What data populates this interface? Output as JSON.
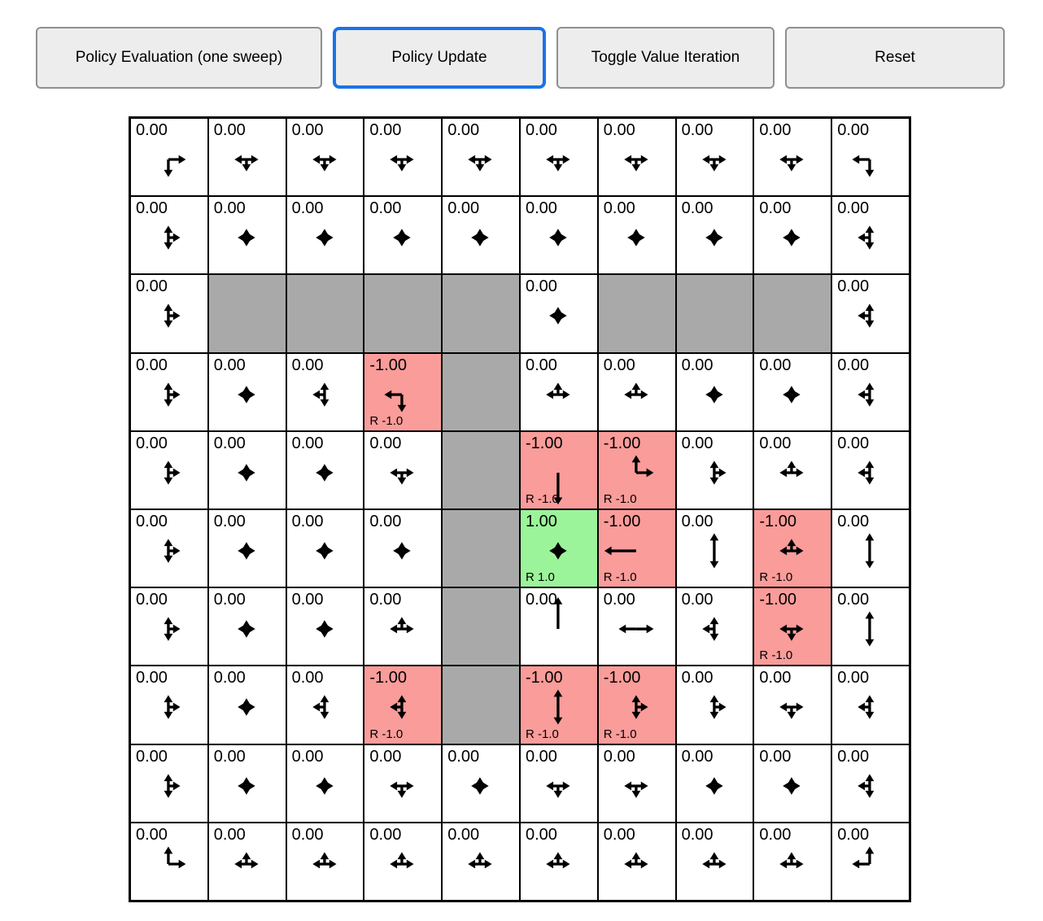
{
  "toolbar": {
    "buttons": [
      {
        "label": "Policy Evaluation (one sweep)",
        "active": false
      },
      {
        "label": "Policy Update",
        "active": true
      },
      {
        "label": "Toggle Value Iteration",
        "active": false
      },
      {
        "label": "Reset",
        "active": false
      }
    ]
  },
  "colors": {
    "wall": "#a9a9a9",
    "reward_negative": "#f99c9a",
    "reward_positive": "#9bf49a",
    "active_button_border": "#1a73e8",
    "grid_line": "#000000",
    "arrow": "#000000"
  },
  "grid": {
    "rows": 10,
    "cols": 10,
    "cells": [
      [
        {
          "value": "0.00",
          "dirs": "DR"
        },
        {
          "value": "0.00",
          "dirs": "LRD"
        },
        {
          "value": "0.00",
          "dirs": "LRD"
        },
        {
          "value": "0.00",
          "dirs": "LRD"
        },
        {
          "value": "0.00",
          "dirs": "LRD"
        },
        {
          "value": "0.00",
          "dirs": "LRD"
        },
        {
          "value": "0.00",
          "dirs": "LRD"
        },
        {
          "value": "0.00",
          "dirs": "LRD"
        },
        {
          "value": "0.00",
          "dirs": "LRD"
        },
        {
          "value": "0.00",
          "dirs": "LD"
        }
      ],
      [
        {
          "value": "0.00",
          "dirs": "UDR"
        },
        {
          "value": "0.00",
          "dirs": "UDLR"
        },
        {
          "value": "0.00",
          "dirs": "UDLR"
        },
        {
          "value": "0.00",
          "dirs": "UDLR"
        },
        {
          "value": "0.00",
          "dirs": "UDLR"
        },
        {
          "value": "0.00",
          "dirs": "UDLR"
        },
        {
          "value": "0.00",
          "dirs": "UDLR"
        },
        {
          "value": "0.00",
          "dirs": "UDLR"
        },
        {
          "value": "0.00",
          "dirs": "UDLR"
        },
        {
          "value": "0.00",
          "dirs": "UDL"
        }
      ],
      [
        {
          "value": "0.00",
          "dirs": "UDR"
        },
        {
          "type": "wall"
        },
        {
          "type": "wall"
        },
        {
          "type": "wall"
        },
        {
          "type": "wall"
        },
        {
          "value": "0.00",
          "dirs": "UDLR"
        },
        {
          "type": "wall"
        },
        {
          "type": "wall"
        },
        {
          "type": "wall"
        },
        {
          "value": "0.00",
          "dirs": "UDL"
        }
      ],
      [
        {
          "value": "0.00",
          "dirs": "UDR"
        },
        {
          "value": "0.00",
          "dirs": "UDLR"
        },
        {
          "value": "0.00",
          "dirs": "UDL"
        },
        {
          "value": "-1.00",
          "dirs": "LD",
          "type": "negative",
          "reward": "R -1.0"
        },
        {
          "type": "wall"
        },
        {
          "value": "0.00",
          "dirs": "ULR"
        },
        {
          "value": "0.00",
          "dirs": "ULR"
        },
        {
          "value": "0.00",
          "dirs": "UDLR"
        },
        {
          "value": "0.00",
          "dirs": "UDLR"
        },
        {
          "value": "0.00",
          "dirs": "UDL"
        }
      ],
      [
        {
          "value": "0.00",
          "dirs": "UDR"
        },
        {
          "value": "0.00",
          "dirs": "UDLR"
        },
        {
          "value": "0.00",
          "dirs": "UDLR"
        },
        {
          "value": "0.00",
          "dirs": "LRD"
        },
        {
          "type": "wall"
        },
        {
          "value": "-1.00",
          "dirs": "D",
          "type": "negative",
          "reward": "R -1.0"
        },
        {
          "value": "-1.00",
          "dirs": "UR",
          "type": "negative",
          "reward": "R -1.0"
        },
        {
          "value": "0.00",
          "dirs": "UDR"
        },
        {
          "value": "0.00",
          "dirs": "ULR"
        },
        {
          "value": "0.00",
          "dirs": "UDL"
        }
      ],
      [
        {
          "value": "0.00",
          "dirs": "UDR"
        },
        {
          "value": "0.00",
          "dirs": "UDLR"
        },
        {
          "value": "0.00",
          "dirs": "UDLR"
        },
        {
          "value": "0.00",
          "dirs": "UDLR"
        },
        {
          "type": "wall"
        },
        {
          "value": "1.00",
          "dirs": "UDLR",
          "type": "positive",
          "reward": "R 1.0"
        },
        {
          "value": "-1.00",
          "dirs": "L",
          "type": "negative",
          "reward": "R -1.0"
        },
        {
          "value": "0.00",
          "dirs": "UD"
        },
        {
          "value": "-1.00",
          "dirs": "ULR",
          "type": "negative",
          "reward": "R -1.0"
        },
        {
          "value": "0.00",
          "dirs": "UD"
        }
      ],
      [
        {
          "value": "0.00",
          "dirs": "UDR"
        },
        {
          "value": "0.00",
          "dirs": "UDLR"
        },
        {
          "value": "0.00",
          "dirs": "UDLR"
        },
        {
          "value": "0.00",
          "dirs": "ULR"
        },
        {
          "type": "wall"
        },
        {
          "value": "0.00",
          "dirs": "U"
        },
        {
          "value": "0.00",
          "dirs": "LR"
        },
        {
          "value": "0.00",
          "dirs": "UDL"
        },
        {
          "value": "-1.00",
          "dirs": "LRD",
          "type": "negative",
          "reward": "R -1.0"
        },
        {
          "value": "0.00",
          "dirs": "UD"
        }
      ],
      [
        {
          "value": "0.00",
          "dirs": "UDR"
        },
        {
          "value": "0.00",
          "dirs": "UDLR"
        },
        {
          "value": "0.00",
          "dirs": "UDL"
        },
        {
          "value": "-1.00",
          "dirs": "UDL",
          "type": "negative",
          "reward": "R -1.0"
        },
        {
          "type": "wall"
        },
        {
          "value": "-1.00",
          "dirs": "UD",
          "type": "negative",
          "reward": "R -1.0"
        },
        {
          "value": "-1.00",
          "dirs": "UDR",
          "type": "negative",
          "reward": "R -1.0"
        },
        {
          "value": "0.00",
          "dirs": "UDR"
        },
        {
          "value": "0.00",
          "dirs": "LRD"
        },
        {
          "value": "0.00",
          "dirs": "UDL"
        }
      ],
      [
        {
          "value": "0.00",
          "dirs": "UDR"
        },
        {
          "value": "0.00",
          "dirs": "UDLR"
        },
        {
          "value": "0.00",
          "dirs": "UDLR"
        },
        {
          "value": "0.00",
          "dirs": "LRD"
        },
        {
          "value": "0.00",
          "dirs": "UDLR"
        },
        {
          "value": "0.00",
          "dirs": "LRD"
        },
        {
          "value": "0.00",
          "dirs": "LRD"
        },
        {
          "value": "0.00",
          "dirs": "UDLR"
        },
        {
          "value": "0.00",
          "dirs": "UDLR"
        },
        {
          "value": "0.00",
          "dirs": "UDL"
        }
      ],
      [
        {
          "value": "0.00",
          "dirs": "UR"
        },
        {
          "value": "0.00",
          "dirs": "ULR"
        },
        {
          "value": "0.00",
          "dirs": "ULR"
        },
        {
          "value": "0.00",
          "dirs": "ULR"
        },
        {
          "value": "0.00",
          "dirs": "ULR"
        },
        {
          "value": "0.00",
          "dirs": "ULR"
        },
        {
          "value": "0.00",
          "dirs": "ULR"
        },
        {
          "value": "0.00",
          "dirs": "ULR"
        },
        {
          "value": "0.00",
          "dirs": "ULR"
        },
        {
          "value": "0.00",
          "dirs": "UL"
        }
      ]
    ]
  }
}
